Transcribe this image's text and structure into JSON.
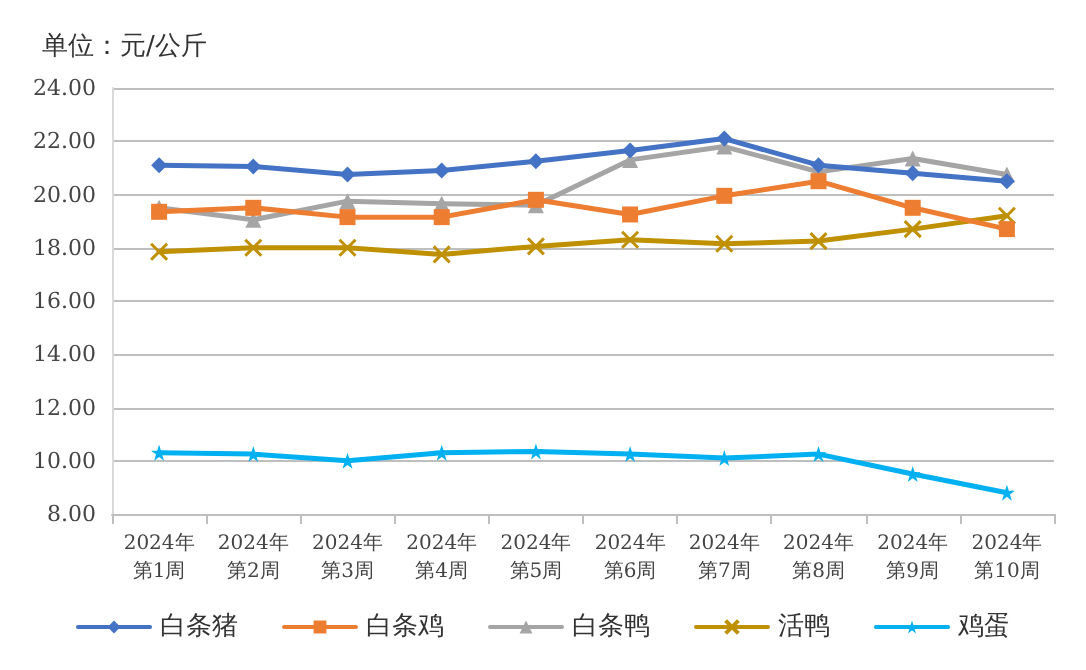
{
  "chart_data": {
    "type": "line",
    "title": "单位：元/公斤",
    "categories": [
      "2024年第1周",
      "2024年第2周",
      "2024年第3周",
      "2024年第4周",
      "2024年第5周",
      "2024年第6周",
      "2024年第7周",
      "2024年第8周",
      "2024年第9周",
      "2024年第10周"
    ],
    "series": [
      {
        "name": "白条猪",
        "color": "#4472c4",
        "marker": "diamond",
        "values": [
          21.1,
          21.05,
          20.75,
          20.9,
          21.25,
          21.65,
          22.1,
          21.1,
          20.8,
          20.5
        ]
      },
      {
        "name": "白条鸡",
        "color": "#ed7d31",
        "marker": "square",
        "values": [
          19.35,
          19.5,
          19.15,
          19.15,
          19.8,
          19.25,
          19.95,
          20.5,
          19.5,
          18.7
        ]
      },
      {
        "name": "白条鸭",
        "color": "#a5a5a5",
        "marker": "triangle",
        "values": [
          19.5,
          19.05,
          19.75,
          19.65,
          19.6,
          21.3,
          21.8,
          20.85,
          21.35,
          20.75
        ]
      },
      {
        "name": "活鸭",
        "color": "#bf9000",
        "marker": "cross",
        "values": [
          17.85,
          18.0,
          18.0,
          17.75,
          18.05,
          18.3,
          18.15,
          18.25,
          18.7,
          19.2
        ]
      },
      {
        "name": "鸡蛋",
        "color": "#00b0f0",
        "marker": "star",
        "values": [
          10.3,
          10.25,
          10.0,
          10.3,
          10.35,
          10.25,
          10.1,
          10.25,
          9.5,
          8.8
        ]
      }
    ],
    "ylim": [
      8,
      24
    ],
    "yticks": [
      {
        "value": 8,
        "label": "8.00"
      },
      {
        "value": 10,
        "label": "10.00"
      },
      {
        "value": 12,
        "label": "12.00"
      },
      {
        "value": 14,
        "label": "14.00"
      },
      {
        "value": 16,
        "label": "16.00"
      },
      {
        "value": 18,
        "label": "18.00"
      },
      {
        "value": 20,
        "label": "20.00"
      },
      {
        "value": 22,
        "label": "22.00"
      },
      {
        "value": 24,
        "label": "24.00"
      }
    ],
    "grid": "y",
    "legend": "bottom",
    "line_style": "solid"
  }
}
